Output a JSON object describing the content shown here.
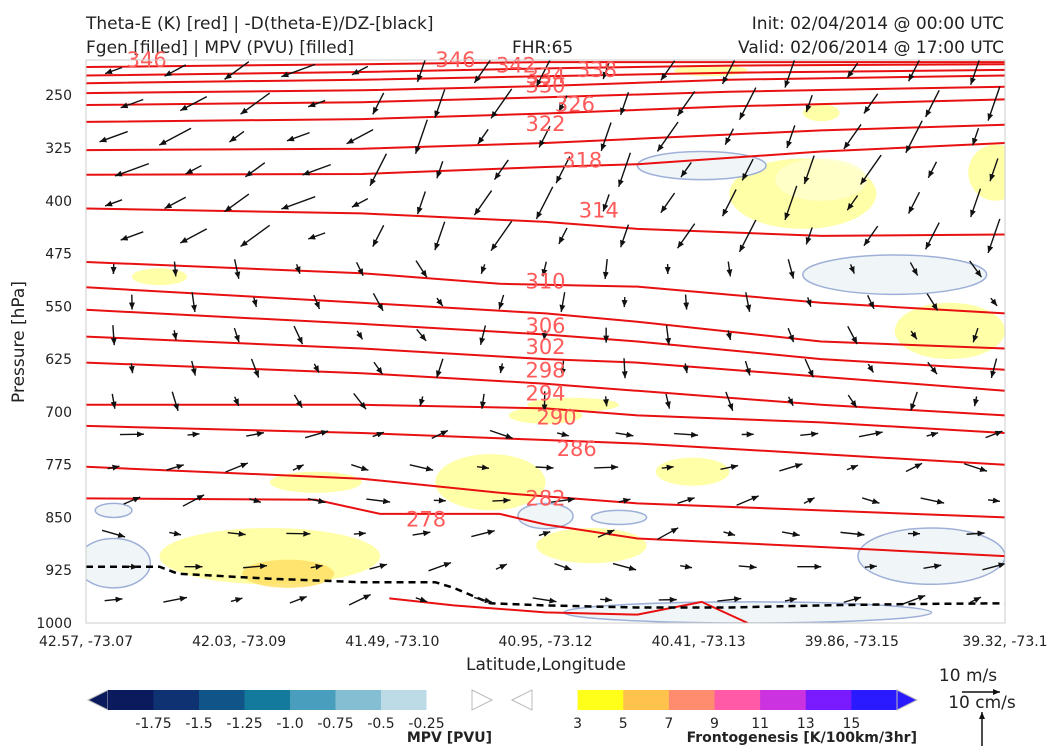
{
  "header": {
    "title_line1": "Theta-E (K) [red] | -D(theta-E)/DZ-[black]",
    "title_line2": "Fgen [filled] | MPV (PVU) [filled]",
    "fhr": "FHR:65",
    "init": "Init: 02/04/2014 @ 00:00 UTC",
    "valid": "Valid: 02/06/2014 @ 17:00 UTC"
  },
  "chart_data": {
    "type": "cross-section",
    "xlabel": "Latitude,Longitude",
    "ylabel": "Pressure [hPa]",
    "x_ticks": [
      "42.57, -73.07",
      "42.03, -73.09",
      "41.49, -73.10",
      "40.95, -73.12",
      "40.41, -73.13",
      "39.86, -73.15",
      "39.32, -73.1"
    ],
    "y_ticks": [
      250,
      325,
      400,
      475,
      550,
      625,
      700,
      775,
      850,
      925,
      1000
    ],
    "ylim": [
      1000,
      200
    ],
    "theta_e_contour_labels": [
      {
        "value": "346",
        "x": 0.066,
        "p": 200
      },
      {
        "value": "346",
        "x": 0.402,
        "p": 200
      },
      {
        "value": "342",
        "x": 0.468,
        "p": 208
      },
      {
        "value": "338",
        "x": 0.556,
        "p": 214
      },
      {
        "value": "334",
        "x": 0.5,
        "p": 223
      },
      {
        "value": "330",
        "x": 0.5,
        "p": 236
      },
      {
        "value": "326",
        "x": 0.532,
        "p": 263
      },
      {
        "value": "322",
        "x": 0.5,
        "p": 291
      },
      {
        "value": "318",
        "x": 0.54,
        "p": 343
      },
      {
        "value": "314",
        "x": 0.558,
        "p": 414
      },
      {
        "value": "310",
        "x": 0.5,
        "p": 515
      },
      {
        "value": "306",
        "x": 0.5,
        "p": 578
      },
      {
        "value": "302",
        "x": 0.5,
        "p": 608
      },
      {
        "value": "298",
        "x": 0.5,
        "p": 641
      },
      {
        "value": "294",
        "x": 0.5,
        "p": 674
      },
      {
        "value": "290",
        "x": 0.512,
        "p": 708
      },
      {
        "value": "286",
        "x": 0.534,
        "p": 753
      },
      {
        "value": "282",
        "x": 0.5,
        "p": 823
      },
      {
        "value": "278",
        "x": 0.37,
        "p": 853
      }
    ],
    "theta_e_lines": [
      [
        [
          0,
          210
        ],
        [
          0.3,
          206
        ],
        [
          0.5,
          203
        ],
        [
          0.7,
          203
        ],
        [
          1,
          203
        ]
      ],
      [
        [
          0,
          222
        ],
        [
          0.3,
          217
        ],
        [
          0.5,
          212
        ],
        [
          0.7,
          208
        ],
        [
          1,
          206
        ]
      ],
      [
        [
          0,
          233
        ],
        [
          0.3,
          228
        ],
        [
          0.5,
          223
        ],
        [
          0.7,
          218
        ],
        [
          1,
          214
        ]
      ],
      [
        [
          0,
          247
        ],
        [
          0.3,
          243
        ],
        [
          0.5,
          237
        ],
        [
          0.7,
          228
        ],
        [
          1,
          222
        ]
      ],
      [
        [
          0,
          264
        ],
        [
          0.3,
          260
        ],
        [
          0.5,
          253
        ],
        [
          0.7,
          245
        ],
        [
          1,
          238
        ]
      ],
      [
        [
          0,
          288
        ],
        [
          0.3,
          284
        ],
        [
          0.5,
          276
        ],
        [
          0.7,
          266
        ],
        [
          1,
          256
        ]
      ],
      [
        [
          0,
          328
        ],
        [
          0.3,
          326
        ],
        [
          0.5,
          318
        ],
        [
          0.6,
          312
        ],
        [
          0.8,
          300
        ],
        [
          1,
          292
        ]
      ],
      [
        [
          0,
          363
        ],
        [
          0.3,
          362
        ],
        [
          0.5,
          352
        ],
        [
          0.6,
          348
        ],
        [
          0.8,
          330
        ],
        [
          1,
          318
        ]
      ],
      [
        [
          0,
          411
        ],
        [
          0.3,
          418
        ],
        [
          0.5,
          430
        ],
        [
          0.6,
          440
        ],
        [
          0.8,
          450
        ],
        [
          1,
          448
        ]
      ],
      [
        [
          0,
          487
        ],
        [
          0.3,
          503
        ],
        [
          0.45,
          518
        ],
        [
          0.6,
          522
        ],
        [
          0.8,
          545
        ],
        [
          1,
          560
        ]
      ],
      [
        [
          0,
          523
        ],
        [
          0.3,
          545
        ],
        [
          0.5,
          560
        ],
        [
          0.6,
          572
        ],
        [
          0.8,
          600
        ],
        [
          1,
          610
        ]
      ],
      [
        [
          0,
          555
        ],
        [
          0.3,
          575
        ],
        [
          0.5,
          590
        ],
        [
          0.6,
          600
        ],
        [
          0.8,
          625
        ],
        [
          1,
          640
        ]
      ],
      [
        [
          0,
          593
        ],
        [
          0.3,
          610
        ],
        [
          0.5,
          625
        ],
        [
          0.6,
          630
        ],
        [
          0.8,
          650
        ],
        [
          1,
          670
        ]
      ],
      [
        [
          0,
          630
        ],
        [
          0.3,
          645
        ],
        [
          0.5,
          660
        ],
        [
          0.6,
          670
        ],
        [
          0.8,
          690
        ],
        [
          1,
          705
        ]
      ],
      [
        [
          0,
          690
        ],
        [
          0.3,
          690
        ],
        [
          0.5,
          695
        ],
        [
          0.6,
          705
        ],
        [
          0.8,
          715
        ],
        [
          1,
          730
        ]
      ],
      [
        [
          0,
          720
        ],
        [
          0.3,
          730
        ],
        [
          0.5,
          740
        ],
        [
          0.6,
          745
        ],
        [
          0.8,
          760
        ],
        [
          1,
          775
        ]
      ],
      [
        [
          0,
          778
        ],
        [
          0.3,
          795
        ],
        [
          0.45,
          815
        ],
        [
          0.6,
          830
        ],
        [
          0.8,
          840
        ],
        [
          1,
          850
        ]
      ],
      [
        [
          0,
          823
        ],
        [
          0.25,
          825
        ],
        [
          0.32,
          845
        ],
        [
          0.45,
          845
        ],
        [
          0.5,
          860
        ],
        [
          0.6,
          880
        ],
        [
          0.8,
          892
        ],
        [
          1,
          905
        ]
      ],
      [
        [
          0.33,
          965
        ],
        [
          0.4,
          975
        ],
        [
          0.5,
          985
        ],
        [
          0.6,
          988
        ],
        [
          0.67,
          970
        ],
        [
          0.72,
          1000
        ]
      ]
    ],
    "stability_line": [
      [
        0,
        920
      ],
      [
        0.08,
        920
      ],
      [
        0.1,
        930
      ],
      [
        0.2,
        937
      ],
      [
        0.3,
        942
      ],
      [
        0.38,
        942
      ],
      [
        0.4,
        950
      ],
      [
        0.44,
        972
      ],
      [
        0.5,
        975
      ],
      [
        0.6,
        978
      ],
      [
        0.7,
        978
      ],
      [
        0.8,
        975
      ],
      [
        0.9,
        973
      ],
      [
        1,
        972
      ]
    ],
    "mpv_colorbar": {
      "title": "MPV [PVU]",
      "labels": [
        "-1.75",
        "-1.5",
        "-1.25",
        "-1.0",
        "-0.75",
        "-0.5",
        "-0.25"
      ],
      "colors": [
        "#0a1a5c",
        "#0f3372",
        "#115588",
        "#137a9d",
        "#4a9ebd",
        "#85bdd3",
        "#bddbe6",
        "#ffffff"
      ]
    },
    "fgen_colorbar": {
      "title": "Frontogenesis [K/100km/3hr]",
      "labels": [
        "3",
        "5",
        "7",
        "9",
        "11",
        "13",
        "15"
      ],
      "colors": [
        "#ffffff",
        "#ffff1a",
        "#ffc34d",
        "#ff8c6e",
        "#ff5aa8",
        "#cc33e0",
        "#7a1aff",
        "#2a1aff"
      ]
    },
    "reference_vectors": {
      "wind": "10 m/s",
      "vertical": "10 cm/s"
    }
  }
}
